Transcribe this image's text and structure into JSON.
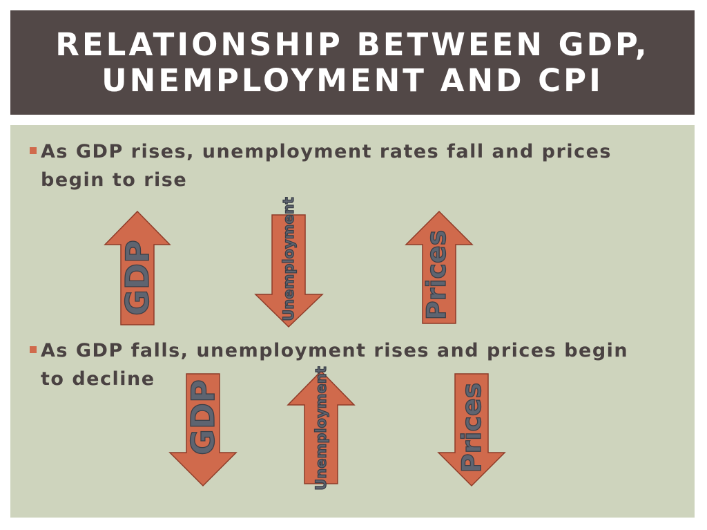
{
  "slide": {
    "title_line1": "RELATIONSHIP BETWEEN GDP,",
    "title_line2": "UNEMPLOYMENT AND CPI"
  },
  "bullets": [
    {
      "text": "As GDP rises, unemployment rates fall and prices begin to rise"
    },
    {
      "text": "As GDP falls, unemployment rises and prices begin to decline"
    }
  ],
  "arrows": {
    "rise": {
      "gdp": {
        "label": "GDP",
        "direction": "up"
      },
      "unemployment": {
        "label": "Unemployment",
        "direction": "down"
      },
      "prices": {
        "label": "Prices",
        "direction": "up"
      }
    },
    "fall": {
      "gdp": {
        "label": "GDP",
        "direction": "down"
      },
      "unemployment": {
        "label": "Unemployment",
        "direction": "up"
      },
      "prices": {
        "label": "Prices",
        "direction": "down"
      }
    }
  },
  "colors": {
    "title_bg": "#524847",
    "content_bg": "#ced4bd",
    "arrow_fill": "#d06a4c",
    "bullet_marker": "#d06a4c"
  }
}
